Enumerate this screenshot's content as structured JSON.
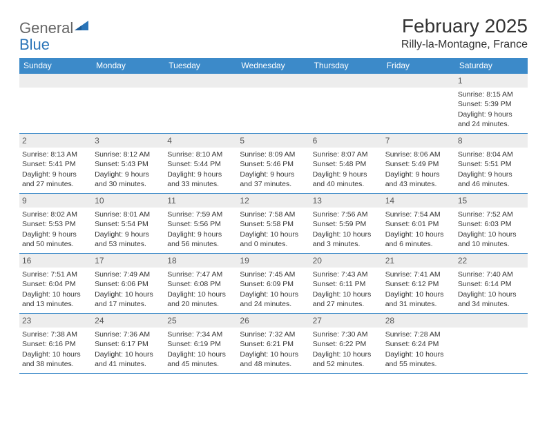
{
  "logo": {
    "part1": "General",
    "part2": "Blue"
  },
  "header": {
    "title": "February 2025",
    "location": "Rilly-la-Montagne, France"
  },
  "colors": {
    "header_bg": "#3c8ac9",
    "header_text": "#ffffff",
    "daynum_bg": "#ededed",
    "border": "#3c8ac9",
    "logo_gray": "#666666",
    "logo_blue": "#2a74b8"
  },
  "weekdays": [
    "Sunday",
    "Monday",
    "Tuesday",
    "Wednesday",
    "Thursday",
    "Friday",
    "Saturday"
  ],
  "weeks": [
    [
      {
        "n": "",
        "lines": []
      },
      {
        "n": "",
        "lines": []
      },
      {
        "n": "",
        "lines": []
      },
      {
        "n": "",
        "lines": []
      },
      {
        "n": "",
        "lines": []
      },
      {
        "n": "",
        "lines": []
      },
      {
        "n": "1",
        "lines": [
          "Sunrise: 8:15 AM",
          "Sunset: 5:39 PM",
          "Daylight: 9 hours and 24 minutes."
        ]
      }
    ],
    [
      {
        "n": "2",
        "lines": [
          "Sunrise: 8:13 AM",
          "Sunset: 5:41 PM",
          "Daylight: 9 hours and 27 minutes."
        ]
      },
      {
        "n": "3",
        "lines": [
          "Sunrise: 8:12 AM",
          "Sunset: 5:43 PM",
          "Daylight: 9 hours and 30 minutes."
        ]
      },
      {
        "n": "4",
        "lines": [
          "Sunrise: 8:10 AM",
          "Sunset: 5:44 PM",
          "Daylight: 9 hours and 33 minutes."
        ]
      },
      {
        "n": "5",
        "lines": [
          "Sunrise: 8:09 AM",
          "Sunset: 5:46 PM",
          "Daylight: 9 hours and 37 minutes."
        ]
      },
      {
        "n": "6",
        "lines": [
          "Sunrise: 8:07 AM",
          "Sunset: 5:48 PM",
          "Daylight: 9 hours and 40 minutes."
        ]
      },
      {
        "n": "7",
        "lines": [
          "Sunrise: 8:06 AM",
          "Sunset: 5:49 PM",
          "Daylight: 9 hours and 43 minutes."
        ]
      },
      {
        "n": "8",
        "lines": [
          "Sunrise: 8:04 AM",
          "Sunset: 5:51 PM",
          "Daylight: 9 hours and 46 minutes."
        ]
      }
    ],
    [
      {
        "n": "9",
        "lines": [
          "Sunrise: 8:02 AM",
          "Sunset: 5:53 PM",
          "Daylight: 9 hours and 50 minutes."
        ]
      },
      {
        "n": "10",
        "lines": [
          "Sunrise: 8:01 AM",
          "Sunset: 5:54 PM",
          "Daylight: 9 hours and 53 minutes."
        ]
      },
      {
        "n": "11",
        "lines": [
          "Sunrise: 7:59 AM",
          "Sunset: 5:56 PM",
          "Daylight: 9 hours and 56 minutes."
        ]
      },
      {
        "n": "12",
        "lines": [
          "Sunrise: 7:58 AM",
          "Sunset: 5:58 PM",
          "Daylight: 10 hours and 0 minutes."
        ]
      },
      {
        "n": "13",
        "lines": [
          "Sunrise: 7:56 AM",
          "Sunset: 5:59 PM",
          "Daylight: 10 hours and 3 minutes."
        ]
      },
      {
        "n": "14",
        "lines": [
          "Sunrise: 7:54 AM",
          "Sunset: 6:01 PM",
          "Daylight: 10 hours and 6 minutes."
        ]
      },
      {
        "n": "15",
        "lines": [
          "Sunrise: 7:52 AM",
          "Sunset: 6:03 PM",
          "Daylight: 10 hours and 10 minutes."
        ]
      }
    ],
    [
      {
        "n": "16",
        "lines": [
          "Sunrise: 7:51 AM",
          "Sunset: 6:04 PM",
          "Daylight: 10 hours and 13 minutes."
        ]
      },
      {
        "n": "17",
        "lines": [
          "Sunrise: 7:49 AM",
          "Sunset: 6:06 PM",
          "Daylight: 10 hours and 17 minutes."
        ]
      },
      {
        "n": "18",
        "lines": [
          "Sunrise: 7:47 AM",
          "Sunset: 6:08 PM",
          "Daylight: 10 hours and 20 minutes."
        ]
      },
      {
        "n": "19",
        "lines": [
          "Sunrise: 7:45 AM",
          "Sunset: 6:09 PM",
          "Daylight: 10 hours and 24 minutes."
        ]
      },
      {
        "n": "20",
        "lines": [
          "Sunrise: 7:43 AM",
          "Sunset: 6:11 PM",
          "Daylight: 10 hours and 27 minutes."
        ]
      },
      {
        "n": "21",
        "lines": [
          "Sunrise: 7:41 AM",
          "Sunset: 6:12 PM",
          "Daylight: 10 hours and 31 minutes."
        ]
      },
      {
        "n": "22",
        "lines": [
          "Sunrise: 7:40 AM",
          "Sunset: 6:14 PM",
          "Daylight: 10 hours and 34 minutes."
        ]
      }
    ],
    [
      {
        "n": "23",
        "lines": [
          "Sunrise: 7:38 AM",
          "Sunset: 6:16 PM",
          "Daylight: 10 hours and 38 minutes."
        ]
      },
      {
        "n": "24",
        "lines": [
          "Sunrise: 7:36 AM",
          "Sunset: 6:17 PM",
          "Daylight: 10 hours and 41 minutes."
        ]
      },
      {
        "n": "25",
        "lines": [
          "Sunrise: 7:34 AM",
          "Sunset: 6:19 PM",
          "Daylight: 10 hours and 45 minutes."
        ]
      },
      {
        "n": "26",
        "lines": [
          "Sunrise: 7:32 AM",
          "Sunset: 6:21 PM",
          "Daylight: 10 hours and 48 minutes."
        ]
      },
      {
        "n": "27",
        "lines": [
          "Sunrise: 7:30 AM",
          "Sunset: 6:22 PM",
          "Daylight: 10 hours and 52 minutes."
        ]
      },
      {
        "n": "28",
        "lines": [
          "Sunrise: 7:28 AM",
          "Sunset: 6:24 PM",
          "Daylight: 10 hours and 55 minutes."
        ]
      },
      {
        "n": "",
        "lines": []
      }
    ]
  ]
}
